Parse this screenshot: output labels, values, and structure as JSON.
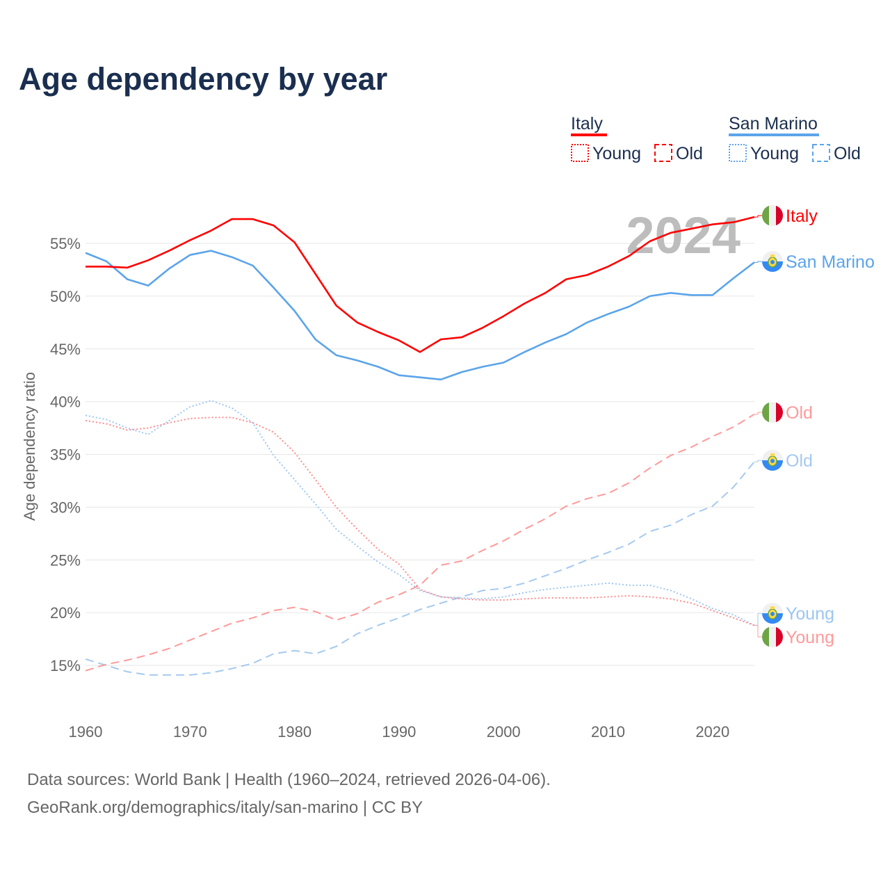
{
  "title": "Age dependency by year",
  "year_watermark": "2024",
  "footer": {
    "line1": "Data sources: World Bank | Health (1960–2024, retrieved 2026-04-06).",
    "line2": "GeoRank.org/demographics/italy/san-marino | CC BY"
  },
  "legend": {
    "groups": [
      {
        "name": "Italy",
        "color": "#ff0000",
        "young": "Young",
        "old": "Old"
      },
      {
        "name": "San Marino",
        "color": "#5ba4ea",
        "young": "Young",
        "old": "Old"
      }
    ]
  },
  "end_labels": {
    "italy_total": "Italy",
    "sm_total": "San Marino",
    "italy_old": "Old",
    "sm_old": "Old",
    "sm_young": "Young",
    "italy_young": "Young"
  },
  "chart_data": {
    "type": "line",
    "title": "Age dependency by year",
    "xlabel": "",
    "ylabel": "Age dependency ratio",
    "xlim": [
      1960,
      2024
    ],
    "ylim": [
      11,
      59
    ],
    "xticks": [
      "1960",
      "1970",
      "1980",
      "1990",
      "2000",
      "2010",
      "2020"
    ],
    "yticks": [
      "15%",
      "20%",
      "25%",
      "30%",
      "35%",
      "40%",
      "45%",
      "50%",
      "55%"
    ],
    "grid": true,
    "x": [
      1960,
      1962,
      1964,
      1966,
      1968,
      1970,
      1972,
      1974,
      1976,
      1978,
      1980,
      1982,
      1984,
      1986,
      1988,
      1990,
      1992,
      1994,
      1996,
      1998,
      2000,
      2002,
      2004,
      2006,
      2008,
      2010,
      2012,
      2014,
      2016,
      2018,
      2020,
      2022,
      2024
    ],
    "series": [
      {
        "key": "italy_total",
        "name": "Italy",
        "style": "solid",
        "color": "#ff0000",
        "values": [
          52.8,
          52.8,
          52.7,
          53.4,
          54.3,
          55.3,
          56.2,
          57.3,
          57.3,
          56.7,
          55.1,
          52.1,
          49.1,
          47.5,
          46.6,
          45.8,
          44.7,
          45.9,
          46.1,
          47.0,
          48.1,
          49.3,
          50.3,
          51.6,
          52.0,
          52.8,
          53.8,
          55.2,
          56.0,
          56.4,
          56.8,
          57.0,
          57.5
        ]
      },
      {
        "key": "sm_total",
        "name": "San Marino",
        "style": "solid",
        "color": "#5ba4ea",
        "values": [
          54.1,
          53.3,
          51.6,
          51.0,
          52.6,
          53.9,
          54.3,
          53.7,
          52.9,
          50.8,
          48.6,
          45.9,
          44.4,
          43.9,
          43.3,
          42.5,
          42.3,
          42.1,
          42.8,
          43.3,
          43.7,
          44.7,
          45.6,
          46.4,
          47.5,
          48.3,
          49.0,
          50.0,
          50.3,
          50.1,
          50.1,
          51.7,
          53.2
        ]
      },
      {
        "key": "italy_young",
        "name": "Italy Young",
        "style": "dotted",
        "color": "#ff8a8a",
        "values": [
          38.2,
          37.9,
          37.3,
          37.5,
          38.0,
          38.4,
          38.5,
          38.5,
          38.0,
          37.1,
          35.2,
          32.6,
          30.0,
          27.9,
          26.0,
          24.6,
          22.2,
          21.5,
          21.3,
          21.2,
          21.2,
          21.3,
          21.4,
          21.4,
          21.4,
          21.5,
          21.6,
          21.5,
          21.3,
          20.9,
          20.2,
          19.5,
          18.8
        ]
      },
      {
        "key": "italy_old",
        "name": "Italy Old",
        "style": "dashed",
        "color": "#ff9a9a",
        "values": [
          14.5,
          15.1,
          15.5,
          16.0,
          16.6,
          17.4,
          18.2,
          19.0,
          19.5,
          20.2,
          20.5,
          20.1,
          19.3,
          19.9,
          21.0,
          21.7,
          22.6,
          24.5,
          24.9,
          25.9,
          26.8,
          27.9,
          28.9,
          30.1,
          30.8,
          31.3,
          32.3,
          33.7,
          34.9,
          35.7,
          36.7,
          37.6,
          38.8
        ]
      },
      {
        "key": "sm_young",
        "name": "San Marino Young",
        "style": "dotted",
        "color": "#9cc6f2",
        "values": [
          38.7,
          38.3,
          37.5,
          36.9,
          38.2,
          39.5,
          40.1,
          39.4,
          38.0,
          34.9,
          32.6,
          30.3,
          27.9,
          26.3,
          24.8,
          23.6,
          22.1,
          21.5,
          21.4,
          21.3,
          21.5,
          21.9,
          22.2,
          22.4,
          22.6,
          22.8,
          22.6,
          22.6,
          22.1,
          21.3,
          20.4,
          19.8,
          18.8
        ]
      },
      {
        "key": "sm_old",
        "name": "San Marino Old",
        "style": "dashed",
        "color": "#a5c9f0",
        "values": [
          15.6,
          15.0,
          14.4,
          14.1,
          14.1,
          14.1,
          14.3,
          14.7,
          15.2,
          16.1,
          16.4,
          16.1,
          16.8,
          18.0,
          18.8,
          19.5,
          20.3,
          20.9,
          21.5,
          22.1,
          22.3,
          22.8,
          23.5,
          24.2,
          25.0,
          25.7,
          26.5,
          27.7,
          28.3,
          29.3,
          30.1,
          31.9,
          34.3
        ]
      }
    ]
  }
}
